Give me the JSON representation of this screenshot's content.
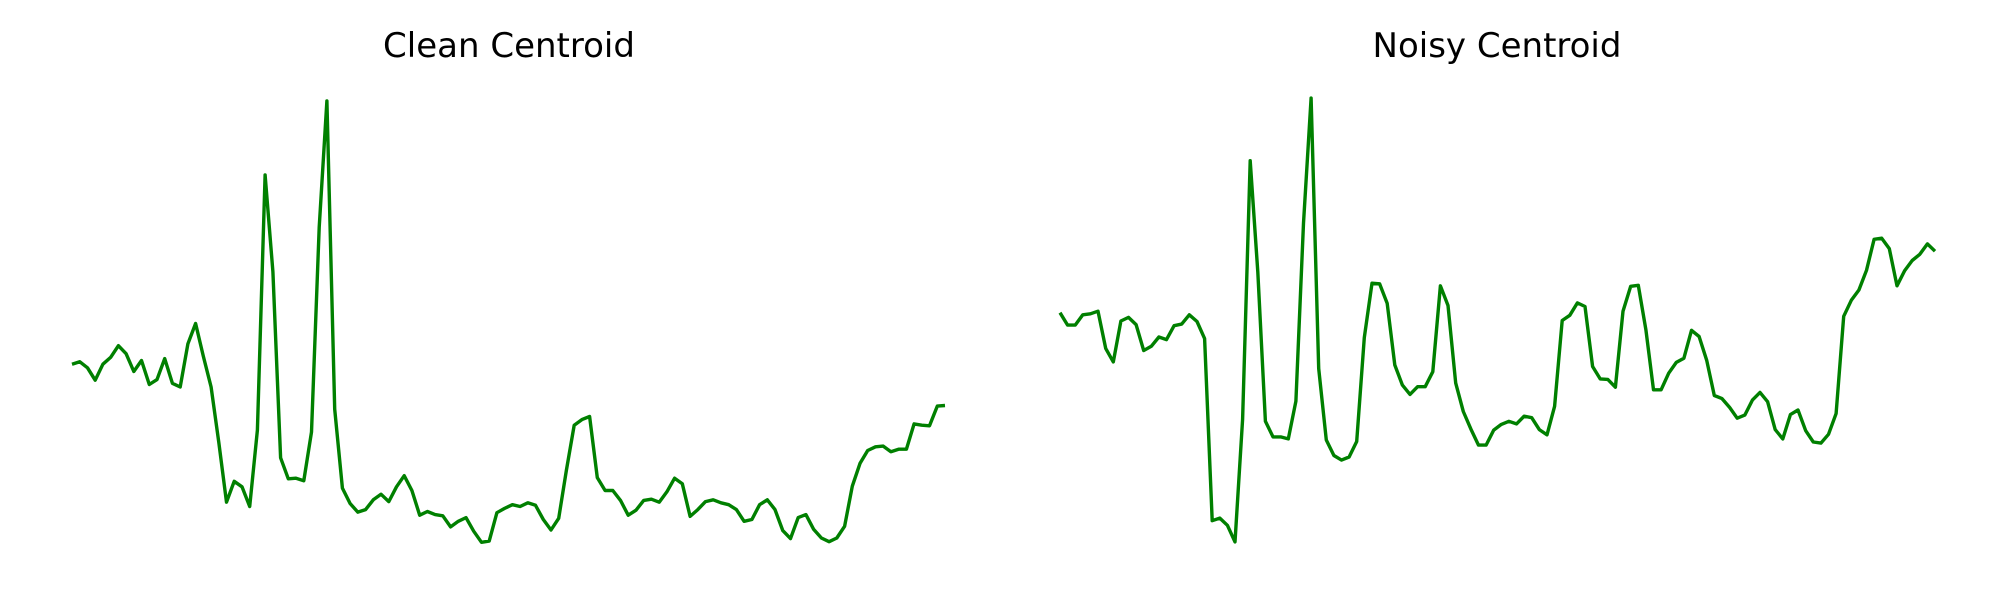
{
  "chart_data": [
    {
      "type": "line",
      "title": "Clean Centroid",
      "xlabel": "",
      "ylabel": "",
      "axes": "off",
      "grid": false,
      "color": "#008000",
      "y": [
        -0.3,
        -0.26,
        -0.36,
        -0.56,
        -0.3,
        -0.19,
        -0.0,
        -0.13,
        -0.42,
        -0.24,
        -0.63,
        -0.55,
        -0.21,
        -0.61,
        -0.67,
        0.03,
        0.36,
        -0.17,
        -0.67,
        -1.57,
        -2.54,
        -2.2,
        -2.29,
        -2.61,
        -1.37,
        2.77,
        1.2,
        -1.82,
        -2.16,
        -2.15,
        -2.19,
        -1.4,
        1.92,
        3.97,
        -1.03,
        -2.31,
        -2.56,
        -2.7,
        -2.66,
        -2.5,
        -2.41,
        -2.53,
        -2.29,
        -2.11,
        -2.35,
        -2.75,
        -2.69,
        -2.74,
        -2.76,
        -2.94,
        -2.85,
        -2.79,
        -3.01,
        -3.19,
        -3.17,
        -2.71,
        -2.64,
        -2.58,
        -2.61,
        -2.55,
        -2.59,
        -2.82,
        -2.99,
        -2.8,
        -2.02,
        -1.29,
        -1.2,
        -1.15,
        -2.14,
        -2.35,
        -2.35,
        -2.51,
        -2.75,
        -2.67,
        -2.51,
        -2.49,
        -2.54,
        -2.37,
        -2.15,
        -2.24,
        -2.77,
        -2.66,
        -2.53,
        -2.5,
        -2.55,
        -2.58,
        -2.66,
        -2.85,
        -2.82,
        -2.58,
        -2.5,
        -2.66,
        -3.0,
        -3.13,
        -2.79,
        -2.74,
        -2.98,
        -3.12,
        -3.18,
        -3.12,
        -2.93,
        -2.28,
        -1.91,
        -1.7,
        -1.64,
        -1.63,
        -1.72,
        -1.68,
        -1.68,
        -1.27,
        -1.29,
        -1.3,
        -0.98,
        -0.97
      ]
    },
    {
      "type": "line",
      "title": "Noisy Centroid",
      "xlabel": "",
      "ylabel": "",
      "axes": "off",
      "grid": false,
      "color": "#008000",
      "y": [
        0.36,
        0.12,
        0.12,
        0.32,
        0.34,
        0.39,
        -0.33,
        -0.59,
        0.2,
        0.27,
        0.13,
        -0.37,
        -0.29,
        -0.11,
        -0.16,
        0.11,
        0.14,
        0.32,
        0.19,
        -0.14,
        -3.66,
        -3.61,
        -3.75,
        -4.07,
        -1.7,
        3.3,
        1.15,
        -1.74,
        -2.04,
        -2.04,
        -2.08,
        -1.35,
        2.09,
        4.51,
        -0.72,
        -2.1,
        -2.4,
        -2.49,
        -2.43,
        -2.13,
        -0.12,
        0.93,
        0.92,
        0.54,
        -0.65,
        -1.04,
        -1.22,
        -1.07,
        -1.07,
        -0.78,
        0.88,
        0.5,
        -1.0,
        -1.55,
        -1.89,
        -2.2,
        -2.2,
        -1.91,
        -1.8,
        -1.74,
        -1.79,
        -1.64,
        -1.67,
        -1.9,
        -2.0,
        -1.45,
        0.21,
        0.31,
        0.55,
        0.48,
        -0.68,
        -0.92,
        -0.93,
        -1.08,
        0.39,
        0.87,
        0.89,
        0.03,
        -1.13,
        -1.13,
        -0.81,
        -0.6,
        -0.52,
        0.02,
        -0.1,
        -0.56,
        -1.24,
        -1.3,
        -1.47,
        -1.68,
        -1.62,
        -1.33,
        -1.18,
        -1.36,
        -1.9,
        -2.08,
        -1.61,
        -1.52,
        -1.92,
        -2.14,
        -2.16,
        -1.99,
        -1.59,
        0.29,
        0.6,
        0.8,
        1.18,
        1.78,
        1.8,
        1.6,
        0.88,
        1.17,
        1.37,
        1.49,
        1.69,
        1.55
      ]
    }
  ]
}
